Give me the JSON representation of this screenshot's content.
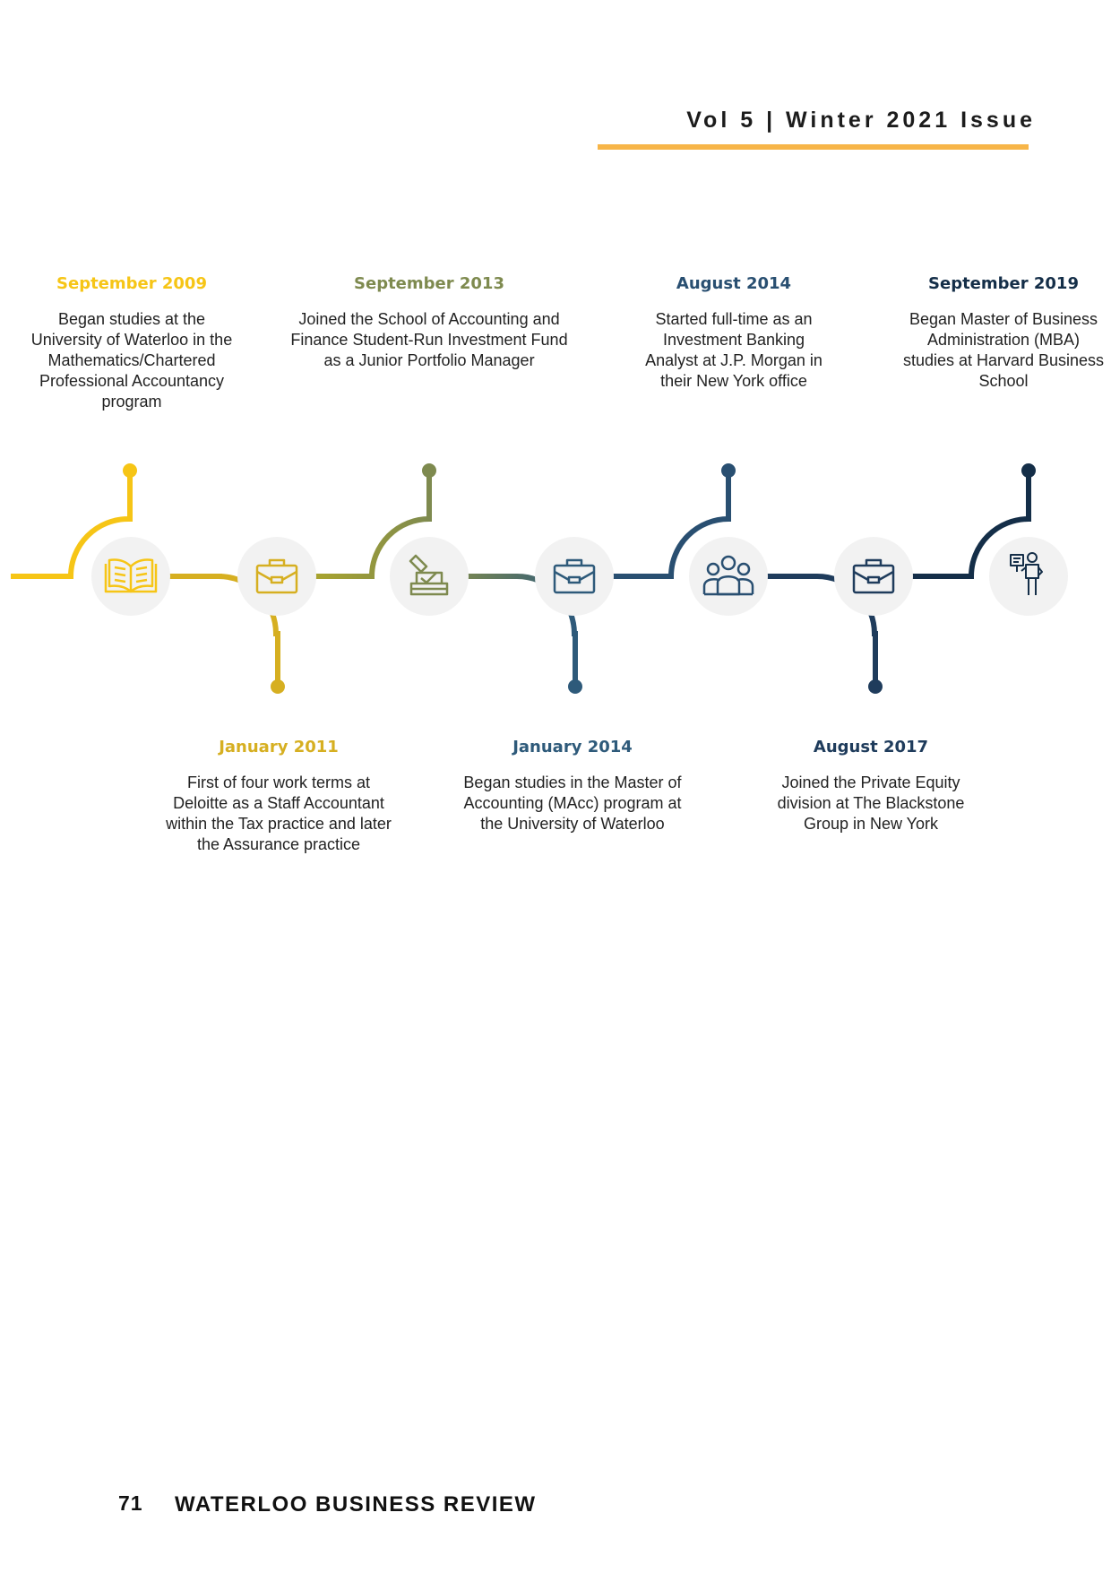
{
  "header": {
    "issue": "Vol 5 | Winter 2021 Issue",
    "accent_color": "#f7b548"
  },
  "timeline": {
    "events": [
      {
        "date": "September 2009",
        "description": "Began studies at the University of Waterloo in the Mathematics/Chartered Professional Accountancy program",
        "icon": "book-icon",
        "color": "#f6c516",
        "position": "top"
      },
      {
        "date": "January 2011",
        "description": "First of four work terms at Deloitte as a Staff Accountant within the Tax practice and later the Assurance practice",
        "icon": "briefcase-icon",
        "color": "#d6af21",
        "position": "bottom"
      },
      {
        "date": "September 2013",
        "description": "Joined the School of Accounting and Finance Student-Run Investment Fund as a Junior Portfolio Manager",
        "icon": "ballot-box-icon",
        "color": "#7e8a4f",
        "position": "top"
      },
      {
        "date": "January 2014",
        "description": "Began studies in the Master of Accounting (MAcc) program at the University of Waterloo",
        "icon": "briefcase-icon",
        "color": "#2e5a7a",
        "position": "bottom"
      },
      {
        "date": "August 2014",
        "description": "Started full-time as an Investment Banking Analyst at J.P. Morgan in their New York office",
        "icon": "team-icon",
        "color": "#294f71",
        "position": "top"
      },
      {
        "date": "August 2017",
        "description": "Joined the Private Equity division at The Blackstone Group in New York",
        "icon": "briefcase-icon",
        "color": "#1f3c5c",
        "position": "bottom"
      },
      {
        "date": "September 2019",
        "description": "Began Master of Business Administration (MBA) studies at Harvard Business School",
        "icon": "presenter-icon",
        "color": "#142e48",
        "position": "top"
      }
    ]
  },
  "footer": {
    "page_number": "71",
    "publication": "WATERLOO BUSINESS REVIEW"
  }
}
